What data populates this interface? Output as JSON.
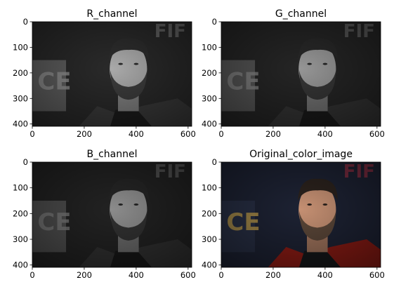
{
  "figure": {
    "panels": [
      {
        "title": "R_channel",
        "variant": "gray",
        "tint": "#000000",
        "brightness": 1.0
      },
      {
        "title": "G_channel",
        "variant": "gray",
        "tint": "#000000",
        "brightness": 0.88
      },
      {
        "title": "B_channel",
        "variant": "gray",
        "tint": "#000000",
        "brightness": 0.82
      },
      {
        "title": "Original_color_image",
        "variant": "color",
        "tint": "#7a1a14",
        "brightness": 1.0
      }
    ],
    "colors": {
      "axis": "#000000",
      "gray_bg_dark": "#2a2a2a",
      "gray_bg_light": "#6e6e6e",
      "skin_gray": "#a9a9a9",
      "hair_gray": "#2d2d2d",
      "beard_gray": "#3c3c3c",
      "color_bg": "#1d2233",
      "color_skin": "#c48f72",
      "color_hair": "#2b221d",
      "color_beard": "#5a4638",
      "color_jacket": "#8a1b14",
      "color_shirt": "#151719"
    }
  },
  "chart_data": {
    "type": "image_grid",
    "images": [
      {
        "title": "R_channel",
        "xlim": [
          0,
          614
        ],
        "ylim": [
          409,
          0
        ]
      },
      {
        "title": "G_channel",
        "xlim": [
          0,
          614
        ],
        "ylim": [
          409,
          0
        ]
      },
      {
        "title": "B_channel",
        "xlim": [
          0,
          614
        ],
        "ylim": [
          409,
          0
        ]
      },
      {
        "title": "Original_color_image",
        "xlim": [
          0,
          614
        ],
        "ylim": [
          409,
          0
        ]
      }
    ],
    "xticks": [
      0,
      200,
      400,
      600
    ],
    "yticks": [
      0,
      100,
      200,
      300,
      400
    ],
    "xtick_labels": [
      "0",
      "200",
      "400",
      "600"
    ],
    "ytick_labels": [
      "0",
      "100",
      "200",
      "300",
      "400"
    ]
  }
}
